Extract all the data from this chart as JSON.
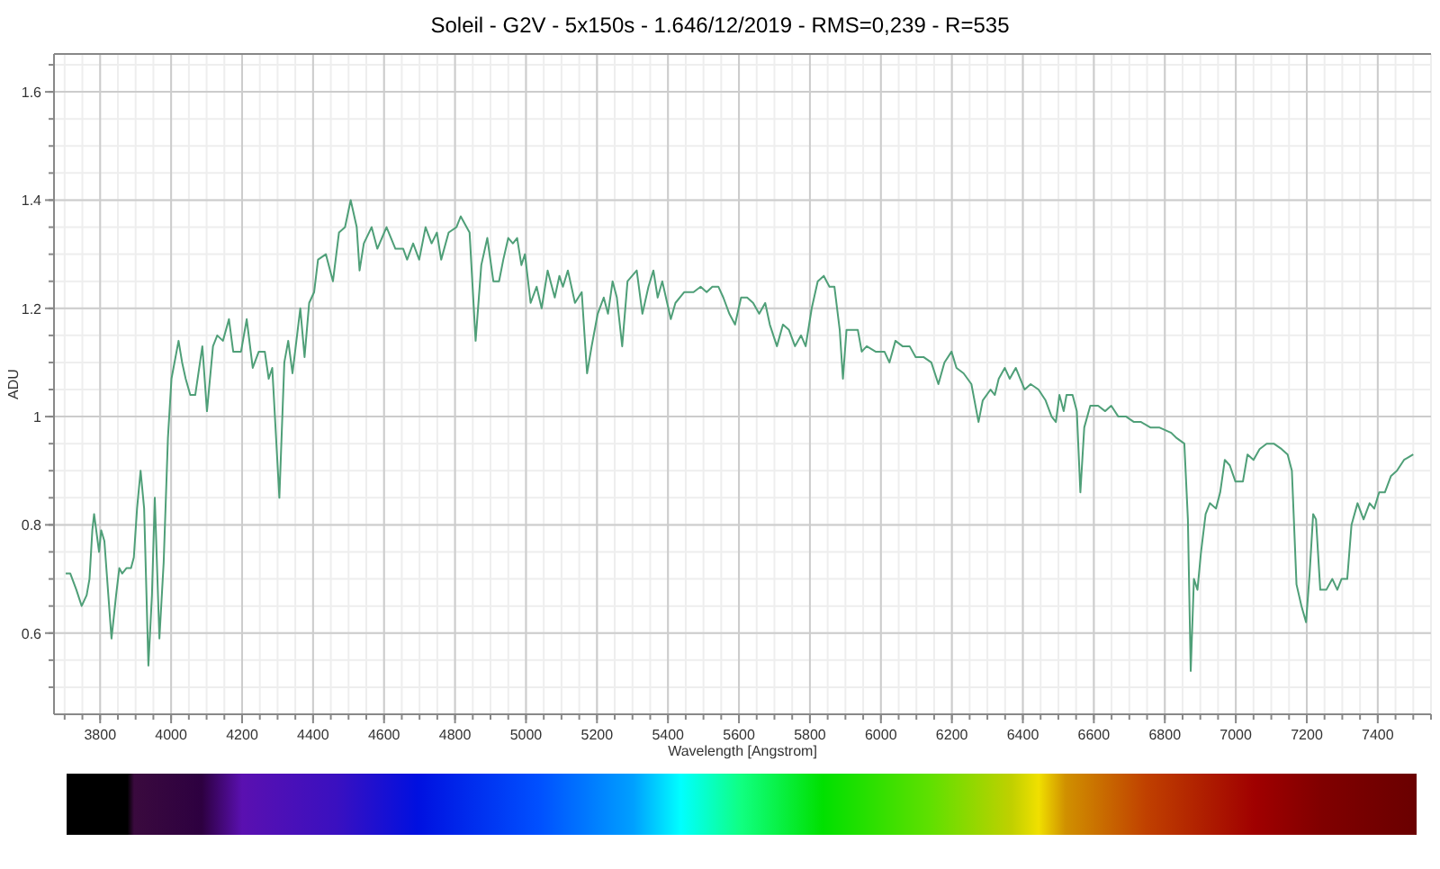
{
  "chart_data": {
    "type": "line",
    "title": "Soleil  -  G2V  -  5x150s  -  1.646/12/2019  -  RMS=0,239  -  R=535",
    "xlabel": "Wavelength [Angstrom]",
    "ylabel": "ADU",
    "xlim": [
      3670,
      7550
    ],
    "ylim": [
      0.45,
      1.67
    ],
    "xticks": [
      3800,
      4000,
      4200,
      4400,
      4600,
      4800,
      5000,
      5200,
      5400,
      5600,
      5800,
      6000,
      6200,
      6400,
      6600,
      6800,
      7000,
      7200,
      7400
    ],
    "yticks": [
      0.6,
      0.8,
      1,
      1.2,
      1.4,
      1.6
    ],
    "grid": true,
    "marker": "none",
    "line_style": "solid",
    "series": [
      {
        "color": "#4f9f78",
        "x": [
          3703,
          3716,
          3733,
          3748,
          3762,
          3770,
          3778,
          3783,
          3797,
          3803,
          3812,
          3832,
          3845,
          3854,
          3862,
          3874,
          3887,
          3895,
          3904,
          3914,
          3924,
          3936,
          3946,
          3954,
          3967,
          3979,
          3991,
          4001,
          4021,
          4031,
          4041,
          4054,
          4068,
          4088,
          4101,
          4118,
          4130,
          4146,
          4163,
          4175,
          4197,
          4213,
          4230,
          4247,
          4264,
          4275,
          4285,
          4305,
          4319,
          4330,
          4342,
          4364,
          4376,
          4389,
          4403,
          4414,
          4436,
          4456,
          4473,
          4490,
          4506,
          4523,
          4531,
          4543,
          4565,
          4581,
          4607,
          4632,
          4654,
          4665,
          4682,
          4699,
          4717,
          4734,
          4749,
          4761,
          4782,
          4804,
          4816,
          4841,
          4858,
          4874,
          4891,
          4908,
          4924,
          4936,
          4950,
          4963,
          4975,
          4987,
          4997,
          5013,
          5030,
          5044,
          5061,
          5081,
          5094,
          5104,
          5118,
          5138,
          5157,
          5172,
          5185,
          5202,
          5219,
          5231,
          5244,
          5256,
          5271,
          5286,
          5312,
          5328,
          5345,
          5359,
          5371,
          5384,
          5408,
          5421,
          5446,
          5472,
          5492,
          5509,
          5525,
          5542,
          5556,
          5573,
          5589,
          5606,
          5623,
          5640,
          5657,
          5674,
          5687,
          5707,
          5724,
          5741,
          5758,
          5775,
          5788,
          5805,
          5822,
          5839,
          5855,
          5869,
          5884,
          5893,
          5903,
          5918,
          5935,
          5946,
          5960,
          5985,
          6010,
          6024,
          6041,
          6061,
          6081,
          6098,
          6120,
          6142,
          6162,
          6179,
          6199,
          6213,
          6233,
          6255,
          6275,
          6287,
          6309,
          6321,
          6332,
          6349,
          6363,
          6380,
          6405,
          6422,
          6444,
          6464,
          6481,
          6493,
          6503,
          6515,
          6523,
          6540,
          6552,
          6562,
          6573,
          6590,
          6612,
          6632,
          6649,
          6669,
          6691,
          6713,
          6733,
          6759,
          6784,
          6818,
          6834,
          6855,
          6865,
          6873,
          6882,
          6892,
          6902,
          6915,
          6927,
          6944,
          6956,
          6969,
          6983,
          6999,
          7020,
          7033,
          7050,
          7067,
          7087,
          7107,
          7129,
          7146,
          7158,
          7171,
          7185,
          7198,
          7208,
          7218,
          7226,
          7238,
          7255,
          7272,
          7286,
          7298,
          7314,
          7326,
          7343,
          7360,
          7377,
          7390,
          7404,
          7420,
          7437,
          7454,
          7474,
          7500
        ],
        "values": [
          0.71,
          0.71,
          0.68,
          0.65,
          0.67,
          0.7,
          0.79,
          0.82,
          0.75,
          0.79,
          0.77,
          0.59,
          0.67,
          0.72,
          0.71,
          0.72,
          0.72,
          0.74,
          0.83,
          0.9,
          0.83,
          0.54,
          0.67,
          0.85,
          0.59,
          0.73,
          0.96,
          1.07,
          1.14,
          1.1,
          1.07,
          1.04,
          1.04,
          1.13,
          1.01,
          1.13,
          1.15,
          1.14,
          1.18,
          1.12,
          1.12,
          1.18,
          1.09,
          1.12,
          1.12,
          1.07,
          1.09,
          0.85,
          1.1,
          1.14,
          1.08,
          1.2,
          1.11,
          1.21,
          1.23,
          1.29,
          1.3,
          1.25,
          1.34,
          1.35,
          1.4,
          1.35,
          1.27,
          1.32,
          1.35,
          1.31,
          1.35,
          1.31,
          1.31,
          1.29,
          1.32,
          1.29,
          1.35,
          1.32,
          1.34,
          1.29,
          1.34,
          1.35,
          1.37,
          1.34,
          1.14,
          1.28,
          1.33,
          1.25,
          1.25,
          1.29,
          1.33,
          1.32,
          1.33,
          1.28,
          1.3,
          1.21,
          1.24,
          1.2,
          1.27,
          1.22,
          1.26,
          1.24,
          1.27,
          1.21,
          1.23,
          1.08,
          1.13,
          1.19,
          1.22,
          1.19,
          1.25,
          1.22,
          1.13,
          1.25,
          1.27,
          1.19,
          1.24,
          1.27,
          1.22,
          1.25,
          1.18,
          1.21,
          1.23,
          1.23,
          1.24,
          1.23,
          1.24,
          1.24,
          1.22,
          1.19,
          1.17,
          1.22,
          1.22,
          1.21,
          1.19,
          1.21,
          1.17,
          1.13,
          1.17,
          1.16,
          1.13,
          1.15,
          1.13,
          1.2,
          1.25,
          1.26,
          1.24,
          1.24,
          1.16,
          1.07,
          1.16,
          1.16,
          1.16,
          1.12,
          1.13,
          1.12,
          1.12,
          1.1,
          1.14,
          1.13,
          1.13,
          1.11,
          1.11,
          1.1,
          1.06,
          1.1,
          1.12,
          1.09,
          1.08,
          1.06,
          0.99,
          1.03,
          1.05,
          1.04,
          1.07,
          1.09,
          1.07,
          1.09,
          1.05,
          1.06,
          1.05,
          1.03,
          1.0,
          0.99,
          1.04,
          1.01,
          1.04,
          1.04,
          1.01,
          0.86,
          0.98,
          1.02,
          1.02,
          1.01,
          1.02,
          1.0,
          1.0,
          0.99,
          0.99,
          0.98,
          0.98,
          0.97,
          0.96,
          0.95,
          0.81,
          0.53,
          0.7,
          0.68,
          0.75,
          0.82,
          0.84,
          0.83,
          0.86,
          0.92,
          0.91,
          0.88,
          0.88,
          0.93,
          0.92,
          0.94,
          0.95,
          0.95,
          0.94,
          0.93,
          0.9,
          0.69,
          0.65,
          0.62,
          0.71,
          0.82,
          0.81,
          0.68,
          0.68,
          0.7,
          0.68,
          0.7,
          0.7,
          0.8,
          0.84,
          0.81,
          0.84,
          0.83,
          0.86,
          0.86,
          0.89,
          0.9,
          0.92,
          0.93
        ]
      }
    ]
  }
}
